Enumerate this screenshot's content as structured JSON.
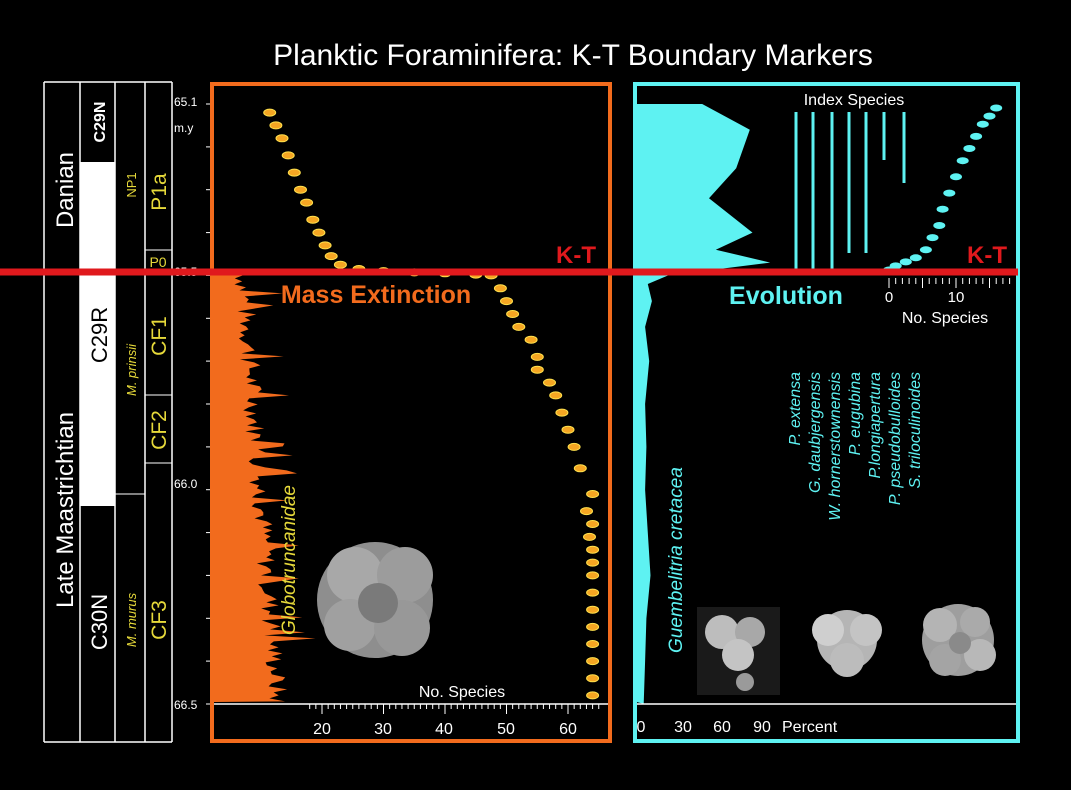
{
  "title": "Planktic Foraminifera: K-T Boundary Markers",
  "colors": {
    "orange": "#f26b1d",
    "orange_dot": "#f5a623",
    "dot_outline": "#ffe14d",
    "cyan": "#5ef2f2",
    "red": "#e0191d",
    "yellow": "#e6d93a",
    "white": "#ffffff"
  },
  "stratigraphy": {
    "stages": [
      "Danian",
      "Late Maastrichtian"
    ],
    "magnetochrons": [
      "C29N",
      "C29R",
      "C30N"
    ],
    "nannofossil_zone": "NP1",
    "biozones_left": [
      "M. prinsii",
      "M. murus"
    ],
    "biozones_right": [
      "P1a",
      "P0",
      "CF1",
      "CF2",
      "CF3"
    ]
  },
  "age_axis": {
    "label_top": "65.1",
    "unit": "m.y",
    "ticks": [
      "65.5",
      "66.0",
      "66.5"
    ]
  },
  "left_panel": {
    "boundary_label": "K-T",
    "event_label": "Mass Extinction",
    "curve_label": "Globotruncanidae",
    "x_axis_label": "No. Species",
    "x_ticks": [
      "20",
      "30",
      "40",
      "50",
      "60"
    ]
  },
  "right_panel": {
    "boundary_label": "K-T",
    "event_label": "Evolution",
    "curve_label": "Guembelitria cretacea",
    "x_axis_label": "Percent",
    "x_ticks": [
      "0",
      "30",
      "60",
      "90"
    ],
    "index_title": "Index Species",
    "inset_x_label": "No. Species",
    "inset_ticks": [
      "0",
      "10"
    ],
    "index_species": [
      "P. extensa",
      "G. daubjergensis",
      "W. hornerstownensis",
      "P. eugubina",
      "P.longiapertura",
      "P. pseudobulloides",
      "S. triloculinoides"
    ]
  },
  "chart_data": [
    {
      "type": "scatter",
      "title": "Mass Extinction",
      "xlabel": "No. Species",
      "ylabel": "m.y",
      "xlim": [
        10,
        67
      ],
      "ylim": [
        66.5,
        65.1
      ],
      "series": [
        {
          "name": "No. Species",
          "points": [
            [
              64,
              66.48
            ],
            [
              64,
              66.44
            ],
            [
              64,
              66.4
            ],
            [
              64,
              66.36
            ],
            [
              64,
              66.32
            ],
            [
              64,
              66.28
            ],
            [
              64,
              66.24
            ],
            [
              64,
              66.2
            ],
            [
              64,
              66.17
            ],
            [
              64,
              66.14
            ],
            [
              63.5,
              66.11
            ],
            [
              64,
              66.08
            ],
            [
              63,
              66.05
            ],
            [
              64,
              66.01
            ],
            [
              62,
              65.95
            ],
            [
              61,
              65.9
            ],
            [
              60,
              65.86
            ],
            [
              59,
              65.82
            ],
            [
              58,
              65.78
            ],
            [
              57,
              65.75
            ],
            [
              55,
              65.72
            ],
            [
              55,
              65.69
            ],
            [
              54,
              65.65
            ],
            [
              52,
              65.62
            ],
            [
              51,
              65.59
            ],
            [
              50,
              65.56
            ],
            [
              49,
              65.53
            ],
            [
              47.5,
              65.5
            ],
            [
              45,
              65.498
            ],
            [
              40,
              65.495
            ],
            [
              35,
              65.493
            ],
            [
              30,
              65.49
            ],
            [
              26,
              65.485
            ],
            [
              23,
              65.475
            ],
            [
              21.5,
              65.455
            ],
            [
              20.5,
              65.43
            ],
            [
              19.5,
              65.4
            ],
            [
              18.5,
              65.37
            ],
            [
              17.5,
              65.33
            ],
            [
              16.5,
              65.3
            ],
            [
              15.5,
              65.26
            ],
            [
              14.5,
              65.22
            ],
            [
              13.5,
              65.18
            ],
            [
              12.5,
              65.15
            ],
            [
              11.5,
              65.12
            ]
          ]
        }
      ],
      "annotations": [
        "K-T",
        "Mass Extinction",
        "Globotruncanidae"
      ]
    },
    {
      "type": "area",
      "title": "Evolution",
      "xlabel": "Percent",
      "xlim": [
        0,
        100
      ],
      "ylim": [
        66.5,
        65.1
      ],
      "series": [
        {
          "name": "Guembelitria cretacea",
          "points": [
            [
              45,
              65.1
            ],
            [
              80,
              65.16
            ],
            [
              70,
              65.25
            ],
            [
              50,
              65.32
            ],
            [
              82,
              65.4
            ],
            [
              55,
              65.44
            ],
            [
              95,
              65.47
            ],
            [
              20,
              65.5
            ],
            [
              5,
              65.52
            ],
            [
              8,
              65.56
            ],
            [
              3,
              65.62
            ],
            [
              6,
              65.7
            ],
            [
              3,
              65.8
            ],
            [
              4,
              65.9
            ],
            [
              3,
              66.0
            ],
            [
              5,
              66.1
            ],
            [
              7,
              66.2
            ],
            [
              4,
              66.3
            ],
            [
              3,
              66.4
            ],
            [
              2,
              66.5
            ]
          ]
        }
      ],
      "annotations": [
        "K-T",
        "Evolution",
        "Guembelitria cretacea"
      ]
    },
    {
      "type": "scatter",
      "title": "",
      "xlabel": "No. Species",
      "xlim": [
        0,
        17
      ],
      "ylim": [
        65.5,
        65.1
      ],
      "series": [
        {
          "name": "No. Species",
          "points": [
            [
              0,
              65.5
            ],
            [
              1,
              65.49
            ],
            [
              2.5,
              65.48
            ],
            [
              4,
              65.47
            ],
            [
              5.5,
              65.45
            ],
            [
              6.5,
              65.42
            ],
            [
              7.5,
              65.39
            ],
            [
              8,
              65.35
            ],
            [
              9,
              65.31
            ],
            [
              10,
              65.27
            ],
            [
              11,
              65.23
            ],
            [
              12,
              65.2
            ],
            [
              13,
              65.17
            ],
            [
              14,
              65.14
            ],
            [
              15,
              65.12
            ],
            [
              16,
              65.1
            ]
          ]
        }
      ]
    }
  ]
}
